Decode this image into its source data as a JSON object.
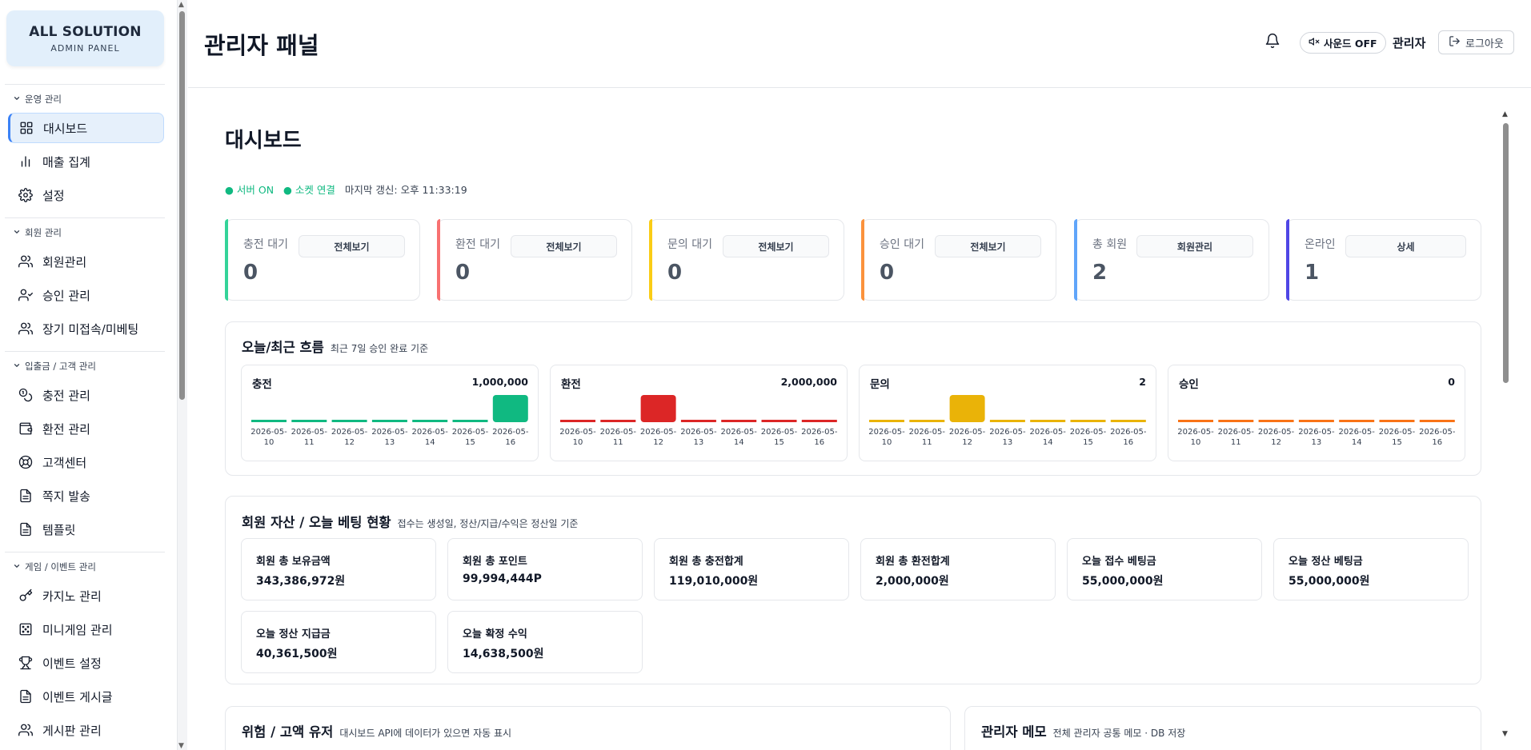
{
  "brand": {
    "title": "ALL SOLUTION",
    "subtitle": "ADMIN PANEL"
  },
  "sidebar": {
    "sections": [
      {
        "label": "운영 관리",
        "items": [
          {
            "label": "대시보드",
            "icon": "dashboard-grid-icon",
            "active": true
          },
          {
            "label": "매출 집계",
            "icon": "bar-chart-icon"
          },
          {
            "label": "설정",
            "icon": "gear-icon"
          }
        ]
      },
      {
        "label": "회원 관리",
        "items": [
          {
            "label": "회원관리",
            "icon": "users-icon"
          },
          {
            "label": "승인 관리",
            "icon": "user-check-icon"
          },
          {
            "label": "장기 미접속/미베팅",
            "icon": "users-icon"
          }
        ]
      },
      {
        "label": "입출금 / 고객 관리",
        "items": [
          {
            "label": "충전 관리",
            "icon": "coins-icon"
          },
          {
            "label": "환전 관리",
            "icon": "wallet-icon"
          },
          {
            "label": "고객센터",
            "icon": "lifebuoy-icon"
          },
          {
            "label": "쪽지 발송",
            "icon": "document-icon"
          },
          {
            "label": "템플릿",
            "icon": "document-icon"
          }
        ]
      },
      {
        "label": "게임 / 이벤트 관리",
        "items": [
          {
            "label": "카지노 관리",
            "icon": "key-icon"
          },
          {
            "label": "미니게임 관리",
            "icon": "dice-icon"
          },
          {
            "label": "이벤트 설정",
            "icon": "trophy-icon"
          },
          {
            "label": "이벤트 게시글",
            "icon": "document-icon"
          },
          {
            "label": "게시판 관리",
            "icon": "users-icon"
          }
        ]
      }
    ]
  },
  "topbar": {
    "title": "관리자 패널",
    "sound_label": "사운드 OFF",
    "admin_label": "관리자",
    "logout_label": "로그아웃"
  },
  "dashboard": {
    "title": "대시보드",
    "status": {
      "server": "● 서버 ON",
      "socket": "● 소켓 연결",
      "last_update": "마지막 갱신: 오후 11:33:19"
    }
  },
  "stat_cards": [
    {
      "label": "충전 대기",
      "value": "0",
      "button": "전체보기",
      "color": "#34d399"
    },
    {
      "label": "환전 대기",
      "value": "0",
      "button": "전체보기",
      "color": "#f87171"
    },
    {
      "label": "문의 대기",
      "value": "0",
      "button": "전체보기",
      "color": "#facc15"
    },
    {
      "label": "승인 대기",
      "value": "0",
      "button": "전체보기",
      "color": "#fb923c"
    },
    {
      "label": "총 회원",
      "value": "2",
      "button": "회원관리",
      "color": "#60a5fa"
    },
    {
      "label": "온라인",
      "value": "1",
      "button": "상세",
      "color": "#4f46e5"
    }
  ],
  "flow": {
    "title": "오늘/최근 흐름",
    "subtitle": "최근 7일 승인 완료 기준"
  },
  "chart_data": [
    {
      "type": "bar",
      "name": "충전",
      "total_label": "1,000,000",
      "color": "#10b981",
      "categories": [
        "2026-05-10",
        "2026-05-11",
        "2026-05-12",
        "2026-05-13",
        "2026-05-14",
        "2026-05-15",
        "2026-05-16"
      ],
      "values": [
        0,
        0,
        0,
        0,
        0,
        0,
        1000000
      ]
    },
    {
      "type": "bar",
      "name": "환전",
      "total_label": "2,000,000",
      "color": "#dc2626",
      "categories": [
        "2026-05-10",
        "2026-05-11",
        "2026-05-12",
        "2026-05-13",
        "2026-05-14",
        "2026-05-15",
        "2026-05-16"
      ],
      "values": [
        0,
        0,
        2000000,
        0,
        0,
        0,
        0
      ]
    },
    {
      "type": "bar",
      "name": "문의",
      "total_label": "2",
      "color": "#eab308",
      "categories": [
        "2026-05-10",
        "2026-05-11",
        "2026-05-12",
        "2026-05-13",
        "2026-05-14",
        "2026-05-15",
        "2026-05-16"
      ],
      "values": [
        0,
        0,
        2,
        0,
        0,
        0,
        0
      ]
    },
    {
      "type": "bar",
      "name": "승인",
      "total_label": "0",
      "color": "#f97316",
      "categories": [
        "2026-05-10",
        "2026-05-11",
        "2026-05-12",
        "2026-05-13",
        "2026-05-14",
        "2026-05-15",
        "2026-05-16"
      ],
      "values": [
        0,
        0,
        0,
        0,
        0,
        0,
        0
      ]
    }
  ],
  "assets": {
    "title": "회원 자산 / 오늘 베팅 현황",
    "subtitle": "접수는 생성일, 정산/지급/수익은 정산일 기준",
    "cards": [
      {
        "label": "회원 총 보유금액",
        "value": "343,386,972원"
      },
      {
        "label": "회원 총 포인트",
        "value": "99,994,444P"
      },
      {
        "label": "회원 총 충전합계",
        "value": "119,010,000원"
      },
      {
        "label": "회원 총 환전합계",
        "value": "2,000,000원"
      },
      {
        "label": "오늘 접수 베팅금",
        "value": "55,000,000원"
      },
      {
        "label": "오늘 정산 베팅금",
        "value": "55,000,000원"
      },
      {
        "label": "오늘 정산 지급금",
        "value": "40,361,500원"
      },
      {
        "label": "오늘 확정 수익",
        "value": "14,638,500원"
      }
    ]
  },
  "risk": {
    "title": "위험 / 고액 유저",
    "subtitle": "대시보드 API에 데이터가 있으면 자동 표시"
  },
  "memo": {
    "title": "관리자 메모",
    "subtitle": "전체 관리자 공통 메모 · DB 저장"
  }
}
